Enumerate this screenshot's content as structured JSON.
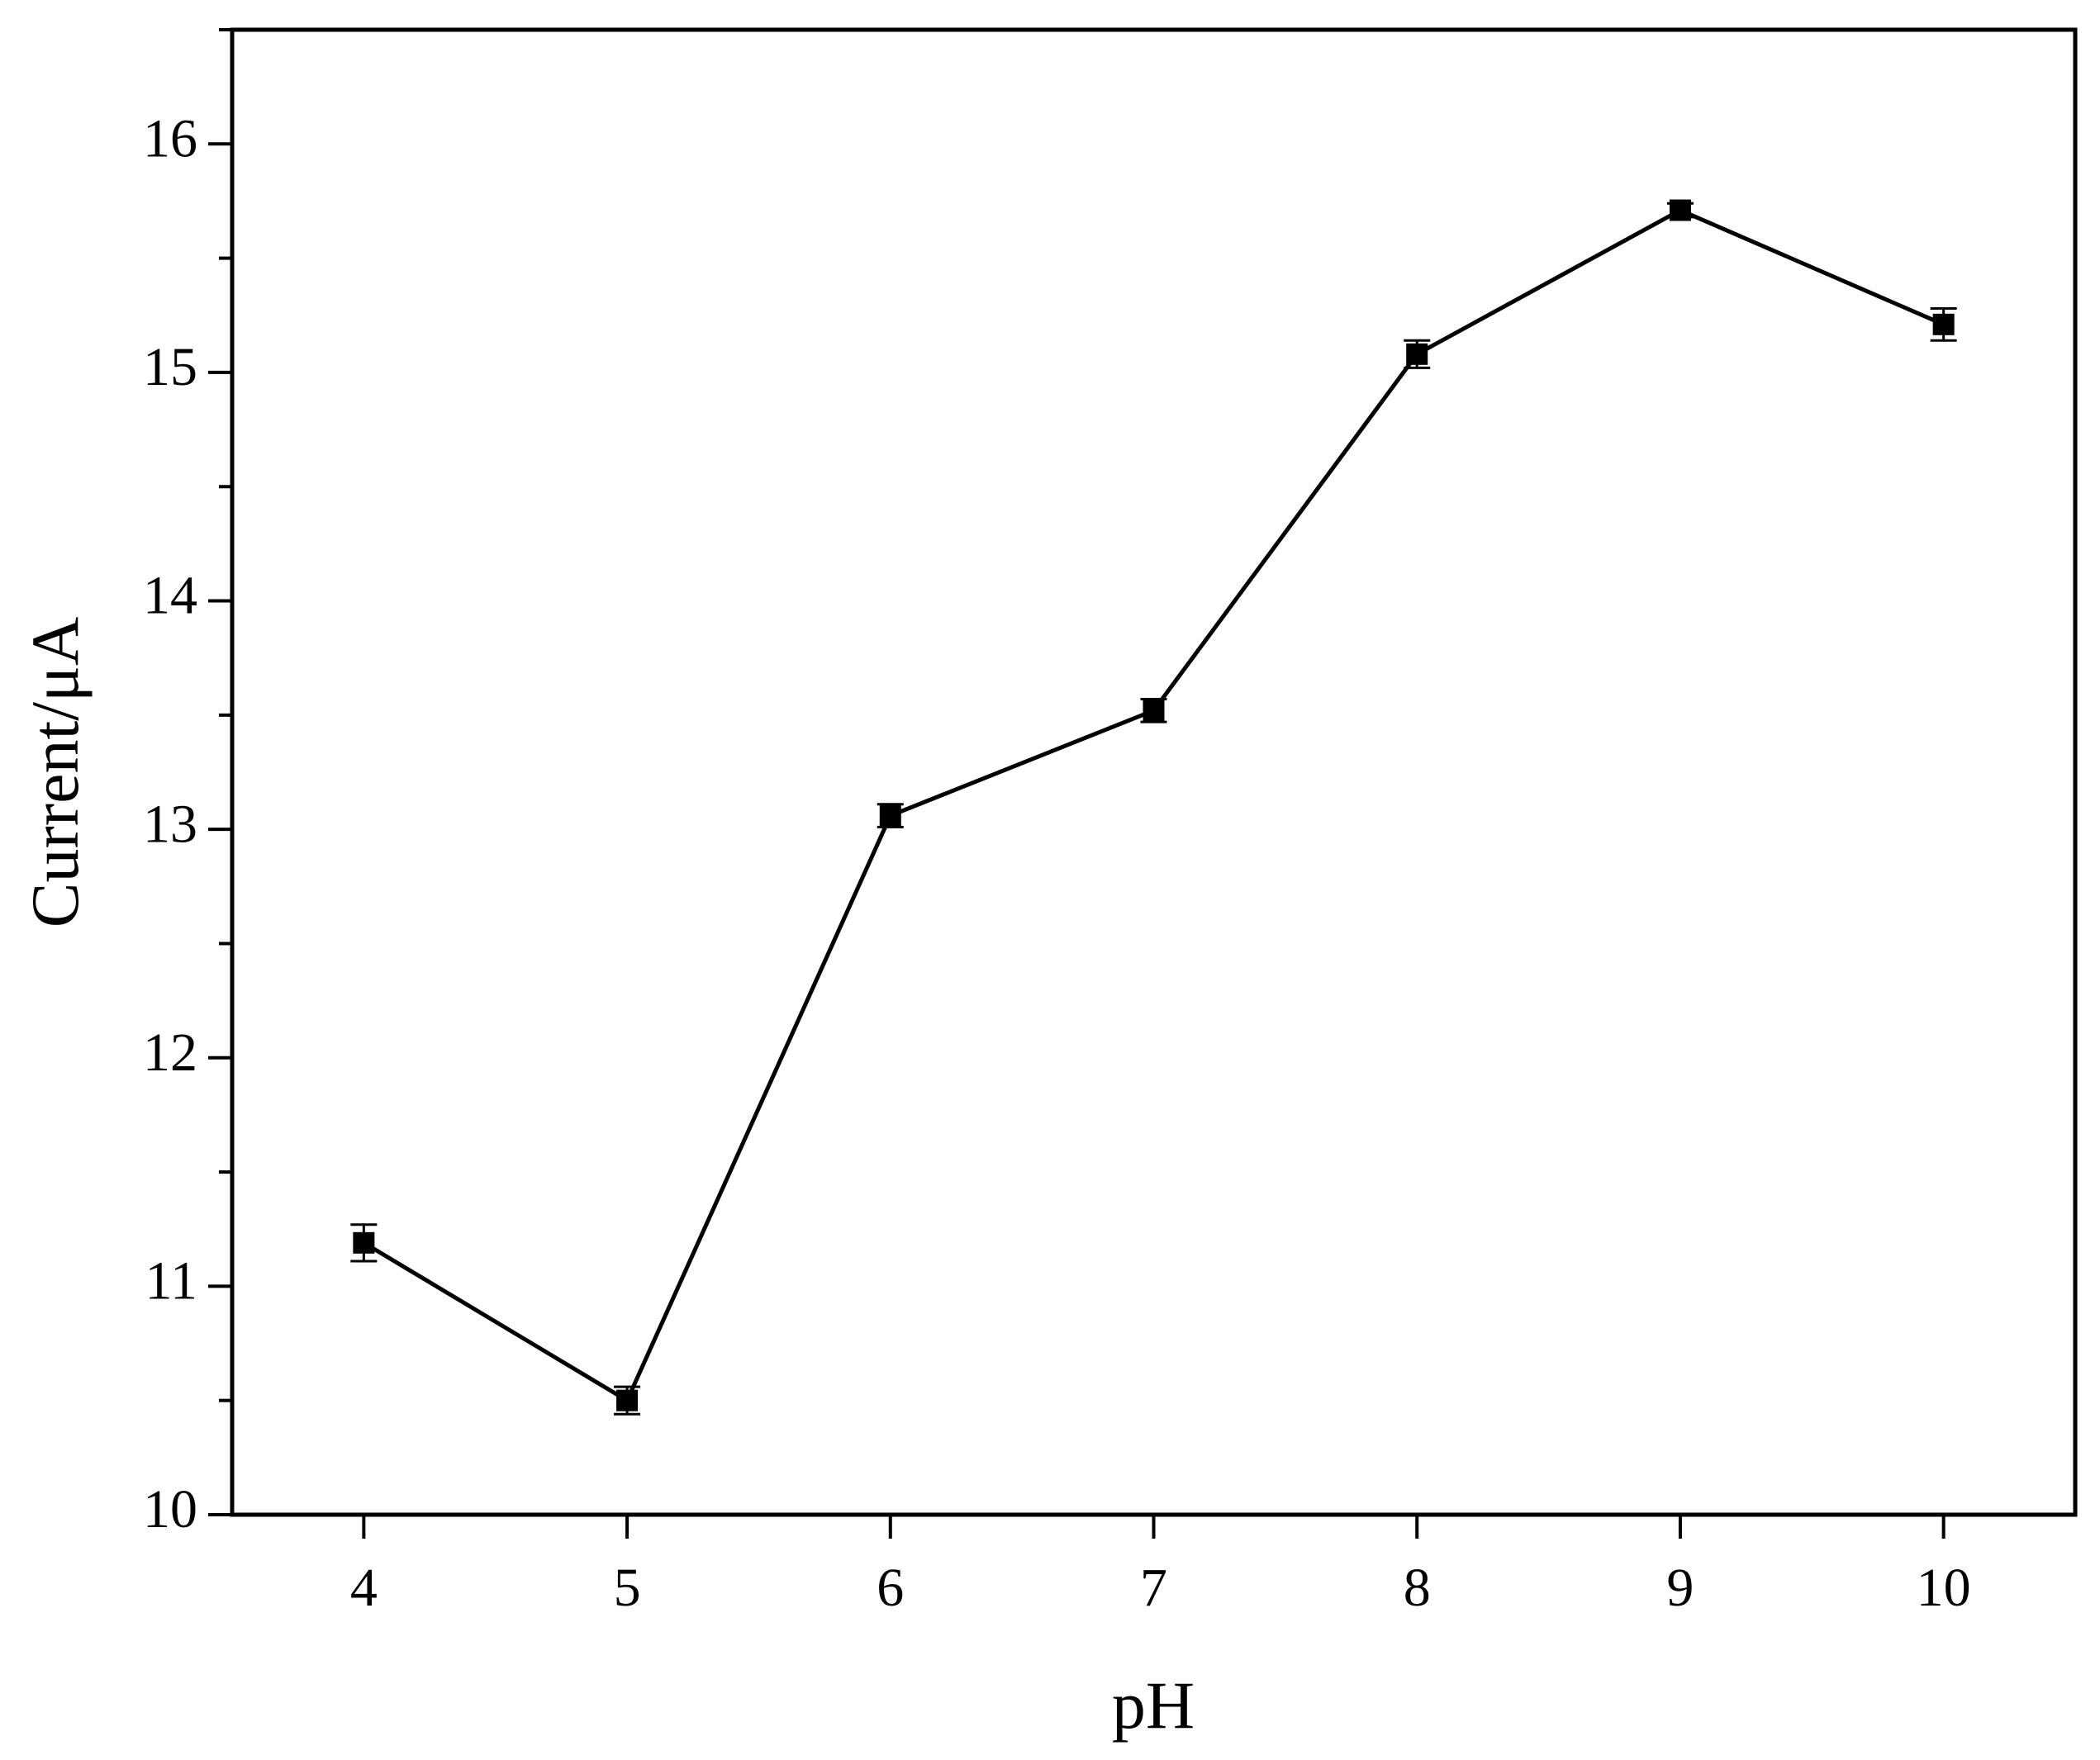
{
  "chart_data": {
    "type": "line",
    "x_label": "pH",
    "y_label": "Current/μA",
    "x": [
      4,
      5,
      6,
      7,
      8,
      9,
      10
    ],
    "series": [
      {
        "color": "#000000",
        "values": [
          11.19,
          10.5,
          13.06,
          13.52,
          15.08,
          15.71,
          15.21
        ],
        "errors": [
          0.08,
          0.06,
          0.05,
          0.05,
          0.06,
          0.03,
          0.07
        ]
      }
    ],
    "xlim": [
      3.5,
      10.5
    ],
    "xticks": [
      4,
      5,
      6,
      7,
      8,
      9,
      10
    ],
    "ylim": [
      10,
      16.5
    ],
    "yticks": [
      10,
      11,
      12,
      13,
      14,
      15,
      16
    ],
    "yminor_ticks": [
      10.5,
      11.5,
      12.5,
      13.5,
      14.5,
      15.5,
      16.5
    ],
    "grid": false
  }
}
